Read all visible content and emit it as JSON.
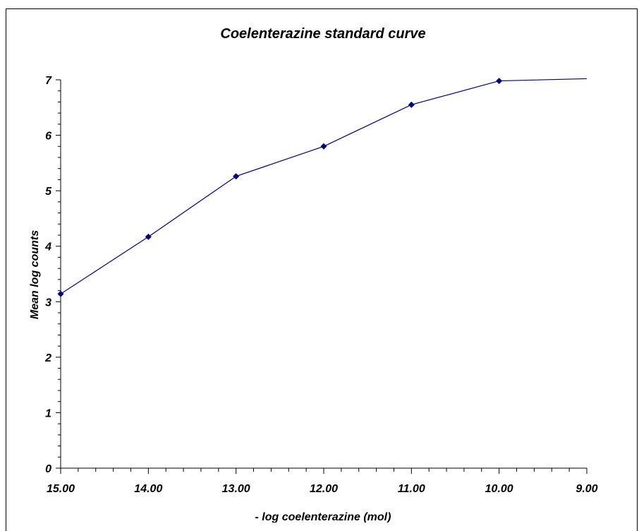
{
  "chart_data": {
    "type": "line",
    "title": "Coelenterazine standard curve",
    "xlabel": "- log coelenterazine (mol)",
    "ylabel": "Mean log counts",
    "xlim": [
      15,
      9
    ],
    "ylim": [
      0,
      7
    ],
    "x_reversed": true,
    "x_ticks": [
      "15.00",
      "14.00",
      "13.00",
      "12.00",
      "11.00",
      "10.00",
      "9.00"
    ],
    "y_ticks": [
      "0",
      "1",
      "2",
      "3",
      "4",
      "5",
      "6",
      "7"
    ],
    "grid": false,
    "legend": "none",
    "series": [
      {
        "color": "#000080",
        "marker": "diamond",
        "x": [
          15,
          14,
          13,
          12,
          11,
          10
        ],
        "y": [
          3.14,
          4.17,
          5.26,
          5.8,
          6.55,
          6.98
        ]
      }
    ],
    "line_extension": {
      "x": 9,
      "y": 7.02
    }
  }
}
